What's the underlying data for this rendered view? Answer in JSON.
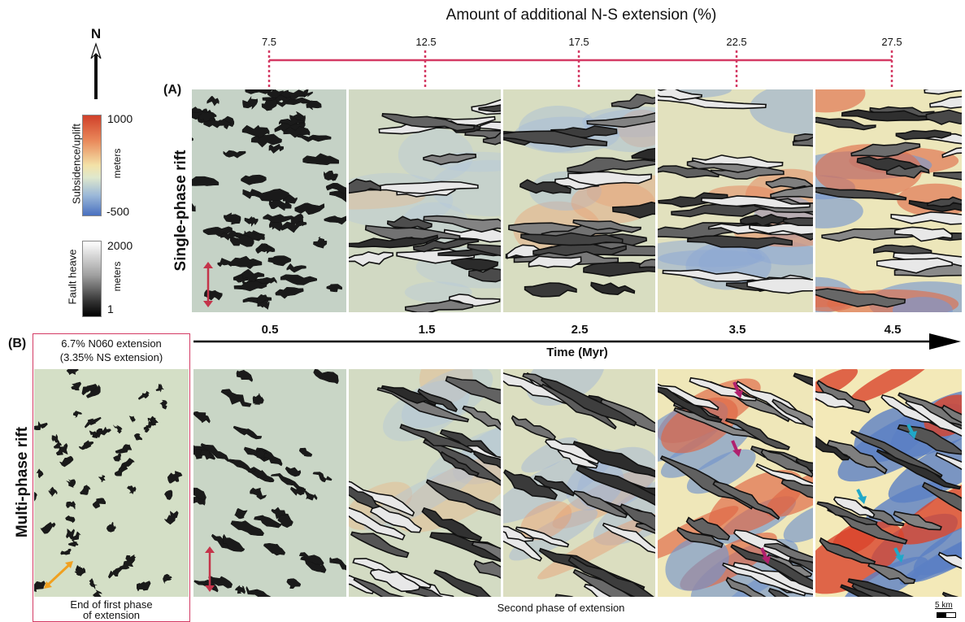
{
  "header": {
    "title": "Amount of additional N-S extension (%)",
    "ticks": [
      "7.5",
      "12.5",
      "17.5",
      "22.5",
      "27.5"
    ]
  },
  "legend": {
    "north_label": "N",
    "subsidence": {
      "label": "Subsidence/uplift",
      "max": "1000",
      "min": "-500",
      "unit": "meters"
    },
    "heave": {
      "label": "Fault heave",
      "max": "2000",
      "min": "1",
      "unit": "meters"
    }
  },
  "row_a": {
    "tag": "(A)",
    "label": "Single-phase rift",
    "stages": [
      {
        "tint": 0.0,
        "faults": 0
      },
      {
        "tint": 0.15,
        "faults": 1
      },
      {
        "tint": 0.3,
        "faults": 2
      },
      {
        "tint": 0.5,
        "faults": 3
      },
      {
        "tint": 0.7,
        "faults": 4
      }
    ]
  },
  "time_axis": {
    "label": "Time (Myr)",
    "ticks": [
      "0.5",
      "1.5",
      "2.5",
      "3.5",
      "4.5"
    ]
  },
  "row_b": {
    "tag": "(B)",
    "label": "Multi-phase rift",
    "first_phase": {
      "line1": "6.7% N060 extension",
      "line2": "(3.35% NS extension)",
      "caption_line1": "End of first phase",
      "caption_line2": "of extension"
    },
    "second_phase_caption": "Second phase of extension",
    "stages": [
      {
        "tint": 0.0
      },
      {
        "tint": 0.2
      },
      {
        "tint": 0.35
      },
      {
        "tint": 0.75
      },
      {
        "tint": 1.0
      }
    ]
  },
  "scale_bar": "5 km",
  "colors": {
    "accent": "#d43a64",
    "ns_arrow": "#c4344a",
    "orange_arrow": "#f0a020",
    "magenta_arrow": "#b0206e",
    "cyan_arrow": "#20a8c8"
  }
}
